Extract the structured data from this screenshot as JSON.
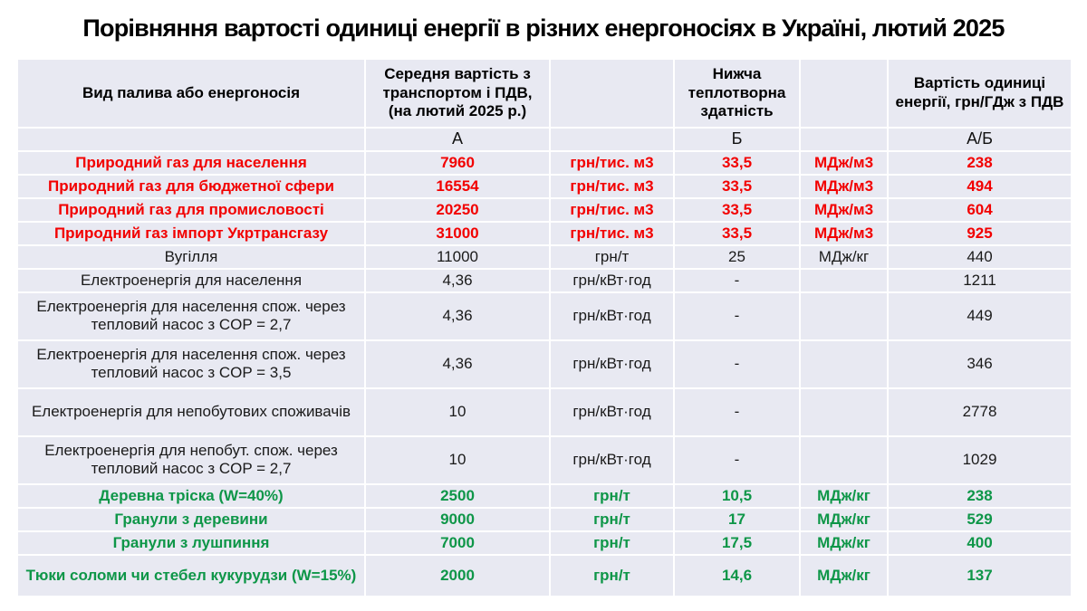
{
  "title": "Порівняння вартості одиниці енергії в різних енергоносіях  в Україні, лютий 2025",
  "colors": {
    "red": "#f20000",
    "green": "#0e9648",
    "cell_bg": "#e8e9f2",
    "grid": "#ffffff",
    "page_bg": "#ffffff"
  },
  "chart_data": {
    "type": "table",
    "title": "Порівняння вартості одиниці енергії в різних енергоносіях  в Україні, лютий 2025",
    "columns": [
      "Вид палива або енергоносія",
      "Середня вартість  з транспортом і ПДВ, (на лютий 2025 р.)",
      "",
      "Нижча теплотворна здатність",
      "",
      "Вартість одиниці енергії, грн/ГДж з ПДВ"
    ],
    "subheaders": [
      "",
      "А",
      "",
      "Б",
      "",
      "А/Б"
    ],
    "rows": [
      {
        "name": "Природний газ для населення",
        "avg_cost": "7960",
        "cost_unit": "грн/тис. м3",
        "heating_value": "33,5",
        "heating_unit": "МДж/м3",
        "unit_cost": "238",
        "color": "red",
        "lines": 1
      },
      {
        "name": "Природний газ для  бюджетної сфери",
        "avg_cost": "16554",
        "cost_unit": "грн/тис. м3",
        "heating_value": "33,5",
        "heating_unit": "МДж/м3",
        "unit_cost": "494",
        "color": "red",
        "lines": 1
      },
      {
        "name": "Природний газ для промисловості",
        "avg_cost": "20250",
        "cost_unit": "грн/тис. м3",
        "heating_value": "33,5",
        "heating_unit": "МДж/м3",
        "unit_cost": "604",
        "color": "red",
        "lines": 1
      },
      {
        "name": "Природний газ імпорт Укртрансгазу",
        "avg_cost": "31000",
        "cost_unit": "грн/тис. м3",
        "heating_value": "33,5",
        "heating_unit": "МДж/м3",
        "unit_cost": "925",
        "color": "red",
        "lines": 1
      },
      {
        "name": "Вугілля",
        "avg_cost": "11000",
        "cost_unit": "грн/т",
        "heating_value": "25",
        "heating_unit": "МДж/кг",
        "unit_cost": "440",
        "color": "black",
        "lines": 1
      },
      {
        "name": "Електроенергія для населення",
        "avg_cost": "4,36",
        "cost_unit": "грн/кВт·год",
        "heating_value": "-",
        "heating_unit": "",
        "unit_cost": "1211",
        "color": "black",
        "lines": 1
      },
      {
        "name": "Електроенергія для населення спож. через тепловий насос з COP = 2,7",
        "avg_cost": "4,36",
        "cost_unit": "грн/кВт·год",
        "heating_value": "-",
        "heating_unit": "",
        "unit_cost": "449",
        "color": "black",
        "lines": 2
      },
      {
        "name": "Електроенергія для населення спож. через тепловий насос з COP = 3,5",
        "avg_cost": "4,36",
        "cost_unit": "грн/кВт·год",
        "heating_value": "-",
        "heating_unit": "",
        "unit_cost": "346",
        "color": "black",
        "lines": 2
      },
      {
        "name": "Електроенергія для непобутових споживачів",
        "avg_cost": "10",
        "cost_unit": "грн/кВт·год",
        "heating_value": "-",
        "heating_unit": "",
        "unit_cost": "2778",
        "color": "black",
        "lines": 2
      },
      {
        "name": "Електроенергія для непобут. спож. через тепловий насос з COP = 2,7",
        "avg_cost": "10",
        "cost_unit": "грн/кВт·год",
        "heating_value": "-",
        "heating_unit": "",
        "unit_cost": "1029",
        "color": "black",
        "lines": 2
      },
      {
        "name": "Деревна тріска (W=40%)",
        "avg_cost": "2500",
        "cost_unit": "грн/т",
        "heating_value": "10,5",
        "heating_unit": "МДж/кг",
        "unit_cost": "238",
        "color": "green",
        "lines": 1
      },
      {
        "name": "Гранули з деревини",
        "avg_cost": "9000",
        "cost_unit": "грн/т",
        "heating_value": "17",
        "heating_unit": "МДж/кг",
        "unit_cost": "529",
        "color": "green",
        "lines": 1
      },
      {
        "name": "Гранули з лушпиння",
        "avg_cost": "7000",
        "cost_unit": "грн/т",
        "heating_value": "17,5",
        "heating_unit": "МДж/кг",
        "unit_cost": "400",
        "color": "green",
        "lines": 1
      },
      {
        "name": "Тюки соломи чи стебел кукурудзи (W=15%)",
        "avg_cost": "2000",
        "cost_unit": "грн/т",
        "heating_value": "14,6",
        "heating_unit": "МДж/кг",
        "unit_cost": "137",
        "color": "green",
        "lines": 2,
        "last": true
      }
    ]
  }
}
